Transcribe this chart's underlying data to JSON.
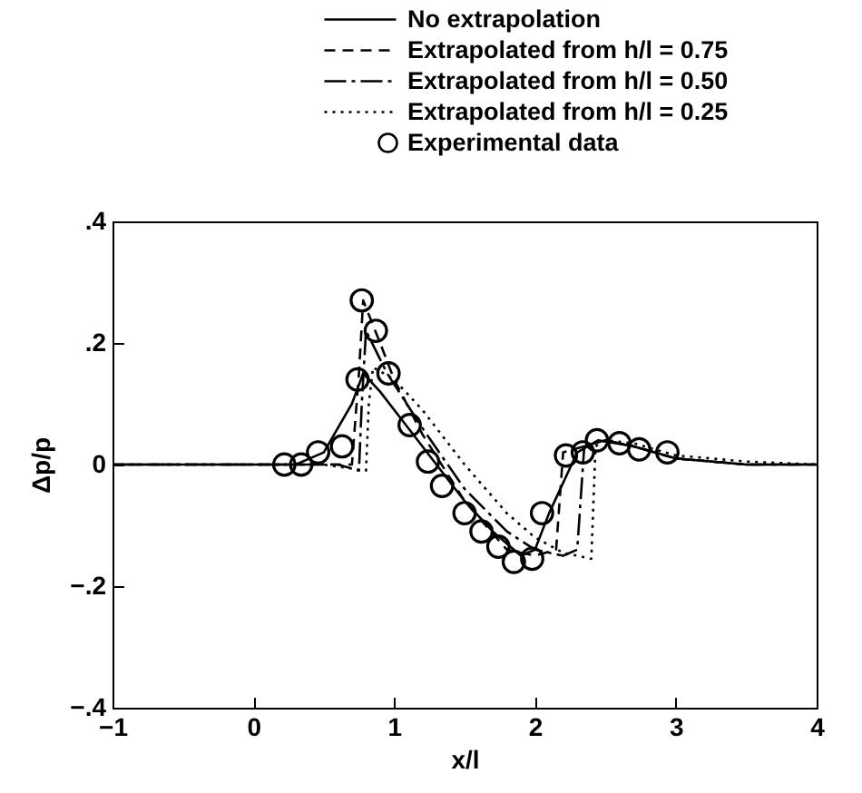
{
  "chart_data": {
    "type": "line",
    "xlabel": "x/l",
    "ylabel": "Δp/p",
    "xlim": [
      -1,
      4
    ],
    "xticks": [
      {
        "value": -1,
        "label": "−1"
      },
      0,
      1,
      2,
      3,
      4
    ],
    "ylim": [
      -0.4,
      0.4
    ],
    "yticks": [
      {
        "value": -0.4,
        "label": "−.4"
      },
      {
        "value": -0.2,
        "label": "−.2"
      },
      0,
      {
        "value": 0.2,
        "label": ".2"
      },
      {
        "value": 0.4,
        "label": ".4"
      }
    ],
    "grid": false,
    "legend": "top right",
    "series": [
      {
        "name": "No extrapolation",
        "line_style": "solid",
        "color": "#000000",
        "x": [
          -1,
          0.3,
          0.5,
          0.7,
          0.78,
          0.9,
          1.1,
          1.3,
          1.5,
          1.7,
          1.9,
          2.0,
          2.1,
          2.3,
          2.45,
          2.7,
          3.0,
          3.5,
          4
        ],
        "values": [
          0,
          0,
          0.02,
          0.1,
          0.15,
          0.12,
          0.06,
          0,
          -0.06,
          -0.11,
          -0.15,
          -0.14,
          -0.08,
          0.02,
          0.04,
          0.03,
          0.01,
          0,
          0
        ]
      },
      {
        "name": "Extrapolated from h/l = 0.75",
        "line_style": "dashed",
        "color": "#000000",
        "x": [
          -1,
          0.7,
          0.75,
          0.78,
          0.9,
          1.0,
          1.2,
          1.5,
          1.8,
          2.0,
          2.15,
          2.2,
          2.35,
          2.5,
          2.7,
          3.0,
          3.5,
          4
        ],
        "values": [
          0,
          0,
          0.15,
          0.27,
          0.2,
          0.14,
          0.05,
          -0.06,
          -0.14,
          -0.15,
          -0.14,
          0.02,
          0.03,
          0.04,
          0.03,
          0.01,
          0,
          0
        ]
      },
      {
        "name": "Extrapolated from h/l = 0.50",
        "line_style": "dashdot",
        "color": "#000000",
        "x": [
          -1,
          0.6,
          0.75,
          0.77,
          0.8,
          0.95,
          1.2,
          1.5,
          1.8,
          2.0,
          2.2,
          2.3,
          2.35,
          2.5,
          2.7,
          3.0,
          3.5,
          4
        ],
        "values": [
          0,
          0,
          -0.01,
          0.1,
          0.22,
          0.15,
          0.06,
          -0.04,
          -0.11,
          -0.14,
          -0.15,
          -0.14,
          0.03,
          0.04,
          0.03,
          0.01,
          0,
          0
        ]
      },
      {
        "name": "Extrapolated from h/l = 0.25",
        "line_style": "dotted",
        "color": "#000000",
        "x": [
          -1,
          0.5,
          0.8,
          0.82,
          0.85,
          1.0,
          1.2,
          1.5,
          1.8,
          2.0,
          2.2,
          2.4,
          2.43,
          2.5,
          2.7,
          3.0,
          3.5,
          4
        ],
        "values": [
          0,
          0,
          -0.01,
          0.1,
          0.16,
          0.14,
          0.09,
          0,
          -0.08,
          -0.12,
          -0.145,
          -0.155,
          0.03,
          0.04,
          0.035,
          0.015,
          0.005,
          0
        ]
      },
      {
        "name": "Experimental data",
        "type": "scatter",
        "marker": "circle",
        "color": "#000000",
        "x": [
          0.22,
          0.34,
          0.46,
          0.63,
          0.74,
          0.77,
          0.87,
          0.96,
          1.11,
          1.24,
          1.34,
          1.5,
          1.62,
          1.74,
          1.85,
          1.98,
          2.05,
          2.22,
          2.34,
          2.44,
          2.6,
          2.74,
          2.94
        ],
        "values": [
          0,
          0,
          0.02,
          0.03,
          0.14,
          0.27,
          0.22,
          0.15,
          0.065,
          0.005,
          -0.035,
          -0.08,
          -0.11,
          -0.135,
          -0.16,
          -0.155,
          -0.08,
          0.015,
          0.02,
          0.04,
          0.035,
          0.025,
          0.02
        ]
      }
    ]
  }
}
